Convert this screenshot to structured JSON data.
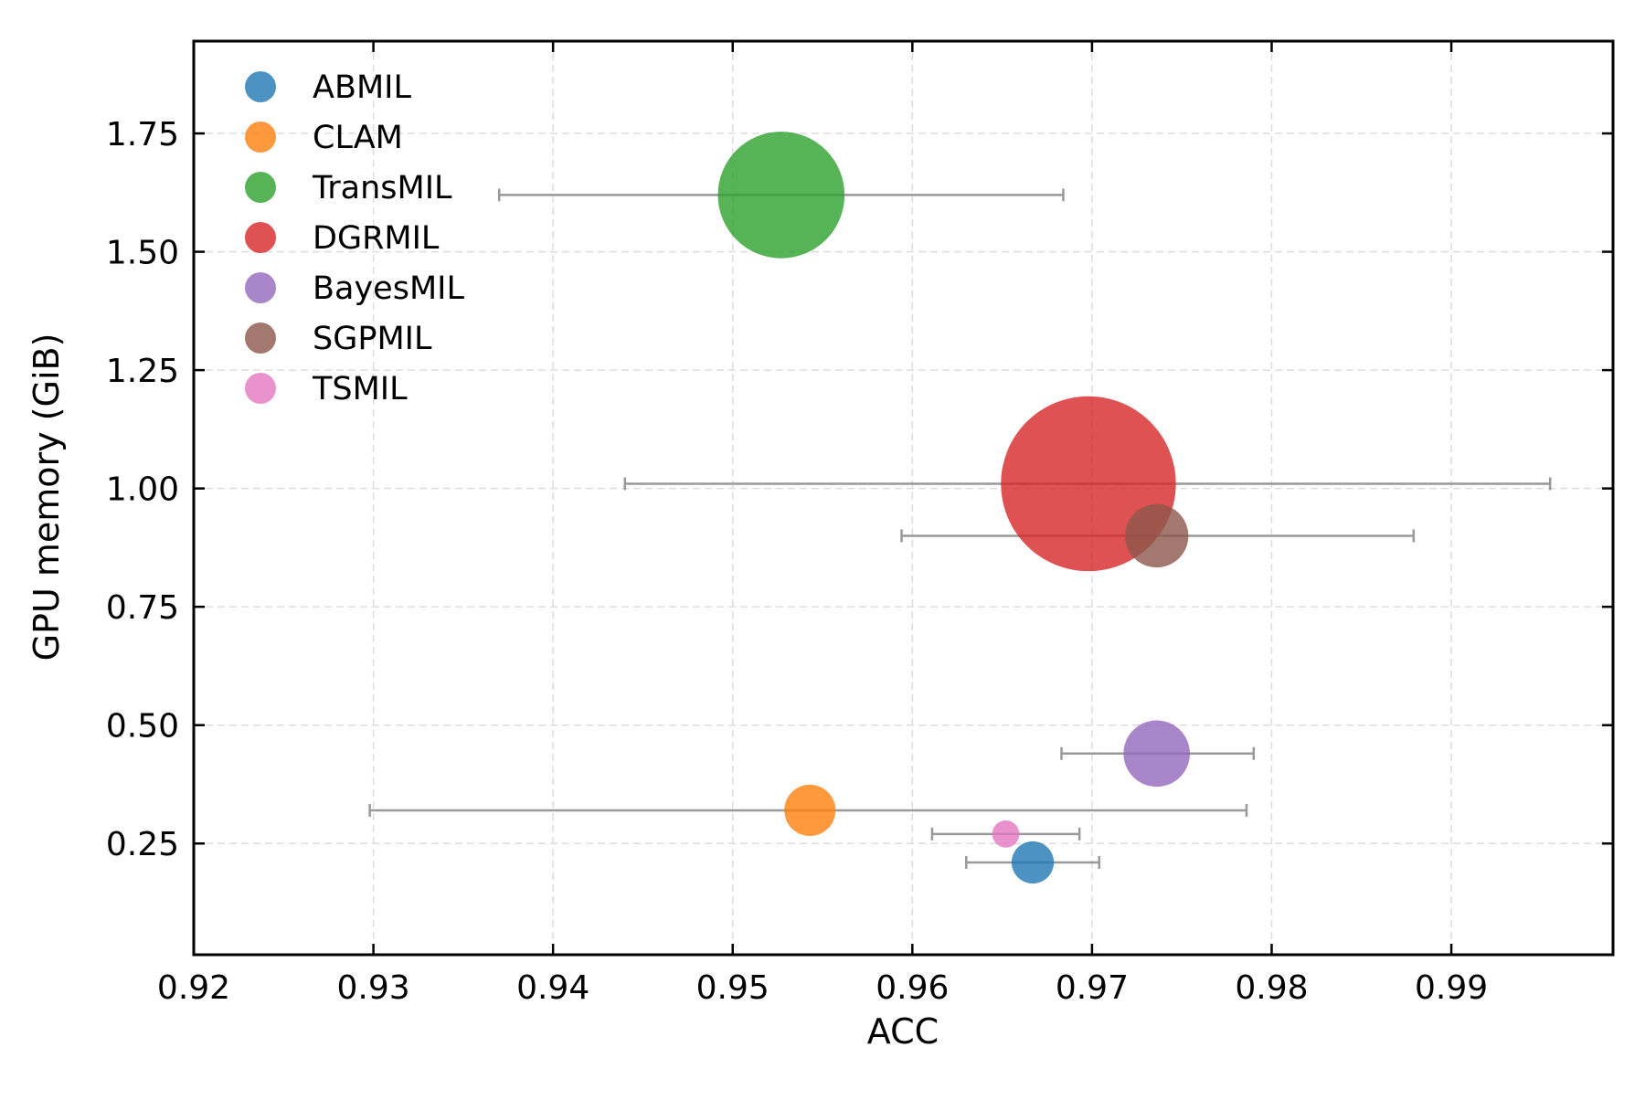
{
  "chart_data": {
    "type": "scatter",
    "title": "",
    "xlabel": "ACC",
    "ylabel": "GPU memory (GiB)",
    "xlim": [
      0.92,
      0.999
    ],
    "ylim": [
      0.015,
      1.945
    ],
    "x_ticks": [
      0.92,
      0.93,
      0.94,
      0.95,
      0.96,
      0.97,
      0.98,
      0.99
    ],
    "x_tick_labels": [
      "0.92",
      "0.93",
      "0.94",
      "0.95",
      "0.96",
      "0.97",
      "0.98",
      "0.99"
    ],
    "y_ticks": [
      0.25,
      0.5,
      0.75,
      1.0,
      1.25,
      1.5,
      1.75
    ],
    "y_tick_labels": [
      "0.25",
      "0.50",
      "0.75",
      "1.00",
      "1.25",
      "1.50",
      "1.75"
    ],
    "grid": true,
    "legend_position": "top-left",
    "bubble_size_note": "marker area scales with an unlabeled per-method quantity",
    "error_bar_color": "#999999",
    "series": [
      {
        "name": "ABMIL",
        "color": "#1f77b4",
        "acc": 0.9667,
        "memory": 0.21,
        "acc_low": 0.963,
        "acc_high": 0.9704,
        "size": 0.7
      },
      {
        "name": "CLAM",
        "color": "#ff7f0e",
        "acc": 0.9543,
        "memory": 0.32,
        "acc_low": 0.9298,
        "acc_high": 0.9786,
        "size": 0.85
      },
      {
        "name": "TransMIL",
        "color": "#2ca02c",
        "acc": 0.9527,
        "memory": 1.62,
        "acc_low": 0.937,
        "acc_high": 0.9684,
        "size": 2.1
      },
      {
        "name": "DGRMIL",
        "color": "#d62728",
        "acc": 0.9698,
        "memory": 1.01,
        "acc_low": 0.944,
        "acc_high": 0.9955,
        "size": 2.9
      },
      {
        "name": "BayesMIL",
        "color": "#9467bd",
        "acc": 0.9736,
        "memory": 0.44,
        "acc_low": 0.9683,
        "acc_high": 0.979,
        "size": 1.1
      },
      {
        "name": "SGPMIL",
        "color": "#8c564b",
        "acc": 0.9736,
        "memory": 0.9,
        "acc_low": 0.9594,
        "acc_high": 0.9879,
        "size": 1.05
      },
      {
        "name": "TSMIL",
        "color": "#e377c2",
        "acc": 0.9652,
        "memory": 0.27,
        "acc_low": 0.9611,
        "acc_high": 0.9693,
        "size": 0.45
      }
    ]
  }
}
